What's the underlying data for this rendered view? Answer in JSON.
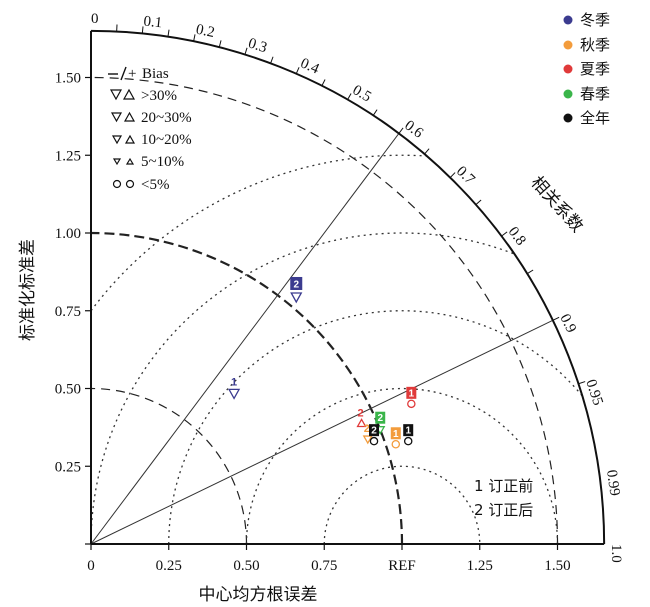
{
  "chart_data": {
    "type": "scatter",
    "subtype": "taylor-diagram",
    "xlabel": "中心均方根误差",
    "ylabel": "标准化标准差",
    "corr_label": "相关系数",
    "std_ticks": [
      "0",
      "0.25",
      "0.50",
      "0.75",
      "1.00",
      "1.25",
      "1.50"
    ],
    "x_ticks": [
      "0",
      "0.25",
      "0.50",
      "0.75",
      "REF",
      "1.25",
      "1.50"
    ],
    "corr_ticks": [
      {
        "label": "0",
        "r": 0
      },
      {
        "label": "0.1",
        "r": 0.1
      },
      {
        "label": "0.2",
        "r": 0.2
      },
      {
        "label": "0.3",
        "r": 0.3
      },
      {
        "label": "0.4",
        "r": 0.4
      },
      {
        "label": "0.5",
        "r": 0.5
      },
      {
        "label": "0.6",
        "r": 0.6
      },
      {
        "label": "0.7",
        "r": 0.7
      },
      {
        "label": "0.8",
        "r": 0.8
      },
      {
        "label": "0.9",
        "r": 0.9
      },
      {
        "label": "0.95",
        "r": 0.95
      },
      {
        "label": "0.99",
        "r": 0.99
      },
      {
        "label": "1.0",
        "r": 1.0
      }
    ],
    "std_max": 1.65,
    "ref_std": 1.0,
    "rms_contours": [
      0.25,
      0.5,
      0.75,
      1.0,
      1.25
    ],
    "legend_seasons": [
      {
        "name": "冬季",
        "color": "#3b3b8f"
      },
      {
        "name": "秋季",
        "color": "#f39c3c"
      },
      {
        "name": "夏季",
        "color": "#e03a3a"
      },
      {
        "name": "春季",
        "color": "#3ab54a"
      },
      {
        "name": "全年",
        "color": "#111111"
      }
    ],
    "legend_bias": {
      "title": "Bias",
      "levels": [
        ">30%",
        "20~30%",
        "10~20%",
        "5~10%",
        "<5%"
      ]
    },
    "notes": [
      "1 订正前",
      "2 订正后"
    ],
    "points": [
      {
        "season": "冬季",
        "label": "2",
        "x": 0.66,
        "y": 0.82,
        "color": "#3b3b8f",
        "marker": "tri-down-big"
      },
      {
        "season": "冬季",
        "label": "1",
        "x": 0.46,
        "y": 0.51,
        "color": "#3b3b8f",
        "marker": "tri-down-big"
      },
      {
        "season": "夏季",
        "label": "1",
        "x": 1.03,
        "y": 0.47,
        "color": "#e03a3a",
        "marker": "circle"
      },
      {
        "season": "夏季",
        "label": "2",
        "x": 0.87,
        "y": 0.41,
        "color": "#e03a3a",
        "marker": "tri-up"
      },
      {
        "season": "春季",
        "label": "2",
        "x": 0.93,
        "y": 0.39,
        "color": "#3ab54a",
        "marker": "tri-down"
      },
      {
        "season": "秋季",
        "label": "2",
        "x": 0.89,
        "y": 0.36,
        "color": "#f39c3c",
        "marker": "tri-down"
      },
      {
        "season": "全年",
        "label": "2",
        "x": 0.91,
        "y": 0.35,
        "color": "#111111",
        "marker": "circle"
      },
      {
        "season": "秋季",
        "label": "1",
        "x": 0.98,
        "y": 0.34,
        "color": "#f39c3c",
        "marker": "circle"
      },
      {
        "season": "全年",
        "label": "1",
        "x": 1.02,
        "y": 0.35,
        "color": "#111111",
        "marker": "circle"
      }
    ]
  }
}
